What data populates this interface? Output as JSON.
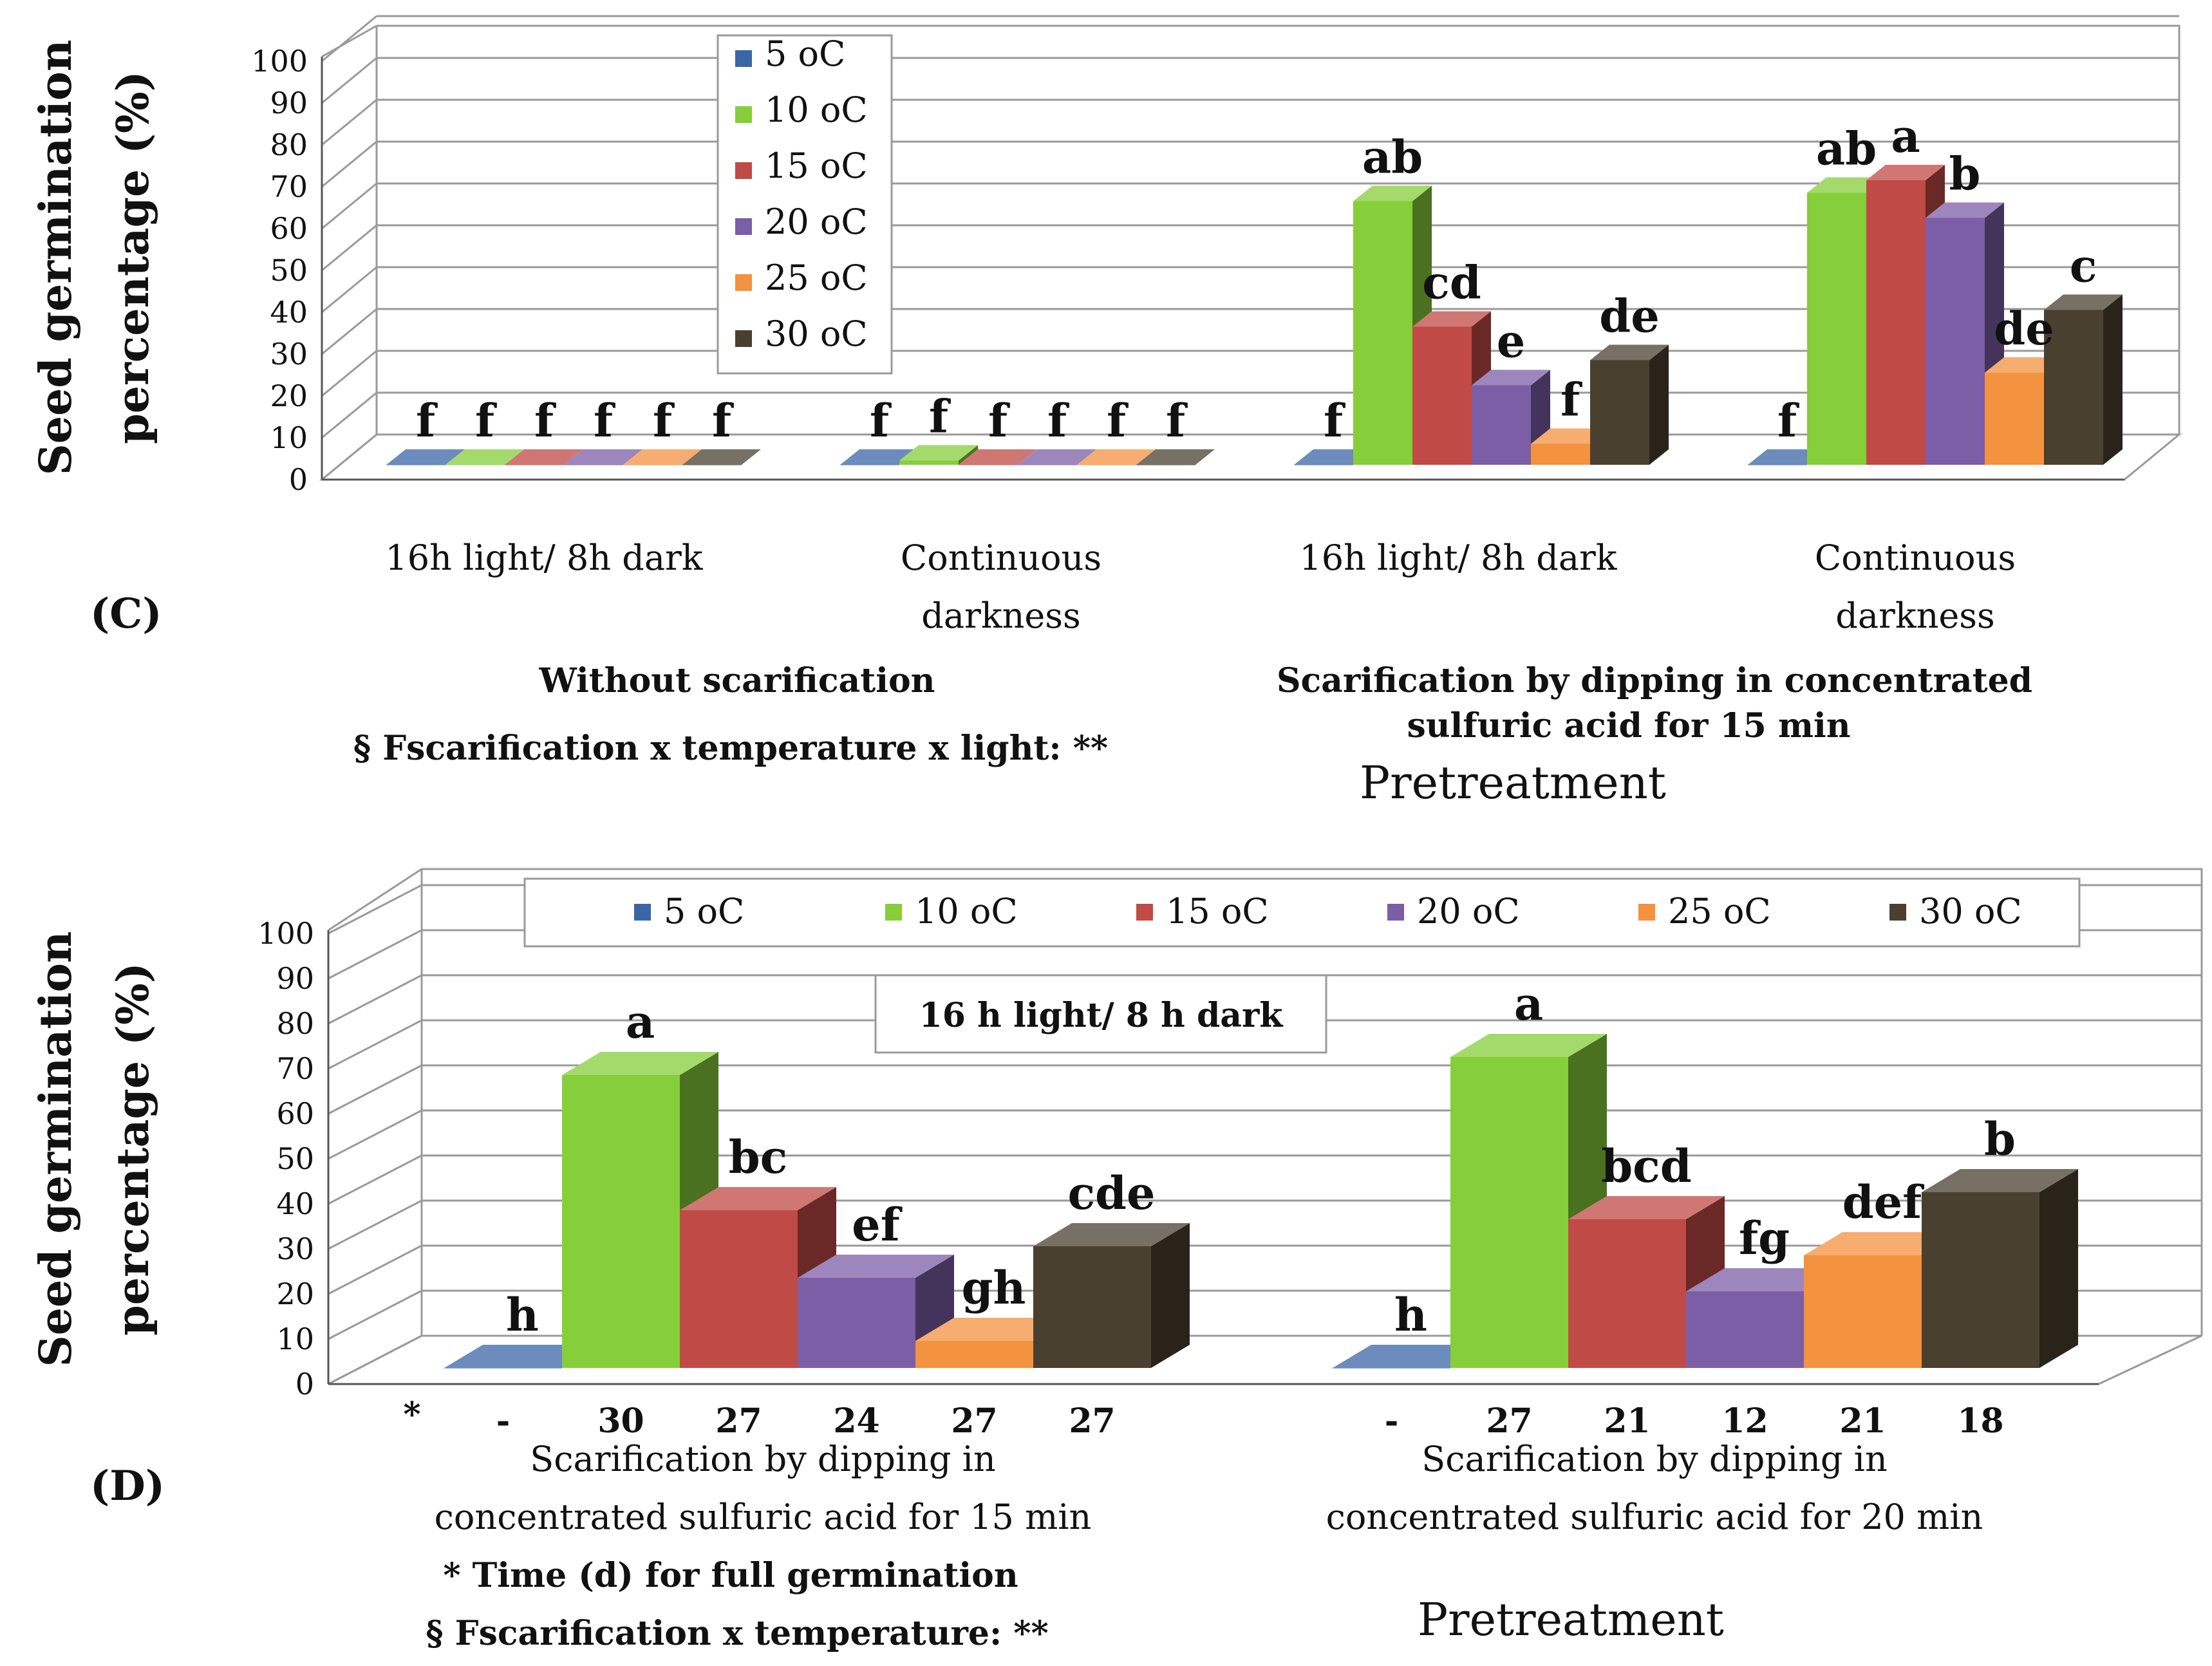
{
  "legend": {
    "entries": [
      {
        "label": "5 oC",
        "color": "#3a66a6"
      },
      {
        "label": "10 oC",
        "color": "#86ce3a"
      },
      {
        "label": "15 oC",
        "color": "#c04a45"
      },
      {
        "label": "20 oC",
        "color": "#7b5ea6"
      },
      {
        "label": "25 oC",
        "color": "#f3923f"
      },
      {
        "label": "30 oC",
        "color": "#4a4030"
      }
    ]
  },
  "chart_data": [
    {
      "type": "bar",
      "panel": "(C)",
      "ylabel_line1": "Seed germination",
      "ylabel_line2": "percentage (%)",
      "ylim": [
        0,
        100
      ],
      "yticks": [
        "0",
        "10",
        "20",
        "30",
        "40",
        "50",
        "60",
        "70",
        "80",
        "90",
        "100"
      ],
      "categories": [
        {
          "line1": "16h light/ 8h dark",
          "line2": ""
        },
        {
          "line1": "Continuous",
          "line2": "darkness"
        },
        {
          "line1": "16h light/ 8h dark",
          "line2": ""
        },
        {
          "line1": "Continuous",
          "line2": "darkness"
        }
      ],
      "series": [
        {
          "name": "5 oC",
          "values": [
            0,
            0,
            0,
            0
          ],
          "letters": [
            "f",
            "f",
            "f",
            "f"
          ]
        },
        {
          "name": "10 oC",
          "values": [
            0,
            1,
            63,
            65
          ],
          "letters": [
            "f",
            "f",
            "ab",
            "ab"
          ]
        },
        {
          "name": "15 oC",
          "values": [
            0,
            0,
            33,
            68
          ],
          "letters": [
            "f",
            "f",
            "cd",
            "a"
          ]
        },
        {
          "name": "20 oC",
          "values": [
            0,
            0,
            19,
            59
          ],
          "letters": [
            "f",
            "f",
            "e",
            "b"
          ]
        },
        {
          "name": "25 oC",
          "values": [
            0,
            0,
            5,
            22
          ],
          "letters": [
            "f",
            "f",
            "f",
            "de"
          ]
        },
        {
          "name": "30 oC",
          "values": [
            0,
            0,
            25,
            37
          ],
          "letters": [
            "f",
            "f",
            "de",
            "c"
          ]
        }
      ],
      "group_label_left": "Without scarification",
      "group_label_right_line1": "Scarification by dipping in concentrated",
      "group_label_right_line2": "sulfuric acid  for 15 min",
      "stats_note": "§ Fscarification x temperature x light: **",
      "xlabel": "Pretreatment"
    },
    {
      "type": "bar",
      "panel": "(D)",
      "ylabel_line1": "Seed germination",
      "ylabel_line2": "percentage (%)",
      "ylim": [
        0,
        100
      ],
      "yticks": [
        "0",
        "10",
        "20",
        "30",
        "40",
        "50",
        "60",
        "70",
        "80",
        "90",
        "100"
      ],
      "inner_label": "16 h light/ 8 h dark",
      "categories": [
        {
          "line1": "Scarification by dipping in",
          "line2": "concentrated sulfuric acid for 15 min"
        },
        {
          "line1": "Scarification by dipping in",
          "line2": "concentrated sulfuric acid for 20 min"
        }
      ],
      "series": [
        {
          "name": "5 oC",
          "values": [
            0,
            0
          ],
          "letters": [
            "h",
            "h"
          ],
          "days": [
            "-",
            "-"
          ]
        },
        {
          "name": "10 oC",
          "values": [
            65,
            69
          ],
          "letters": [
            "a",
            "a"
          ],
          "days": [
            "30",
            "27"
          ]
        },
        {
          "name": "15 oC",
          "values": [
            35,
            33
          ],
          "letters": [
            "bc",
            "bcd"
          ],
          "days": [
            "27",
            "21"
          ]
        },
        {
          "name": "20 oC",
          "values": [
            20,
            17
          ],
          "letters": [
            "ef",
            "fg"
          ],
          "days": [
            "24",
            "12"
          ]
        },
        {
          "name": "25 oC",
          "values": [
            6,
            25
          ],
          "letters": [
            "gh",
            "def"
          ],
          "days": [
            "27",
            "21"
          ]
        },
        {
          "name": "30 oC",
          "values": [
            27,
            39
          ],
          "letters": [
            "cde",
            "b"
          ],
          "days": [
            "27",
            "18"
          ]
        }
      ],
      "days_marker": "*",
      "footnote": "*  Time (d) for full germination",
      "stats_note": "§ Fscarification x temperature: **",
      "xlabel": "Pretreatment"
    }
  ]
}
